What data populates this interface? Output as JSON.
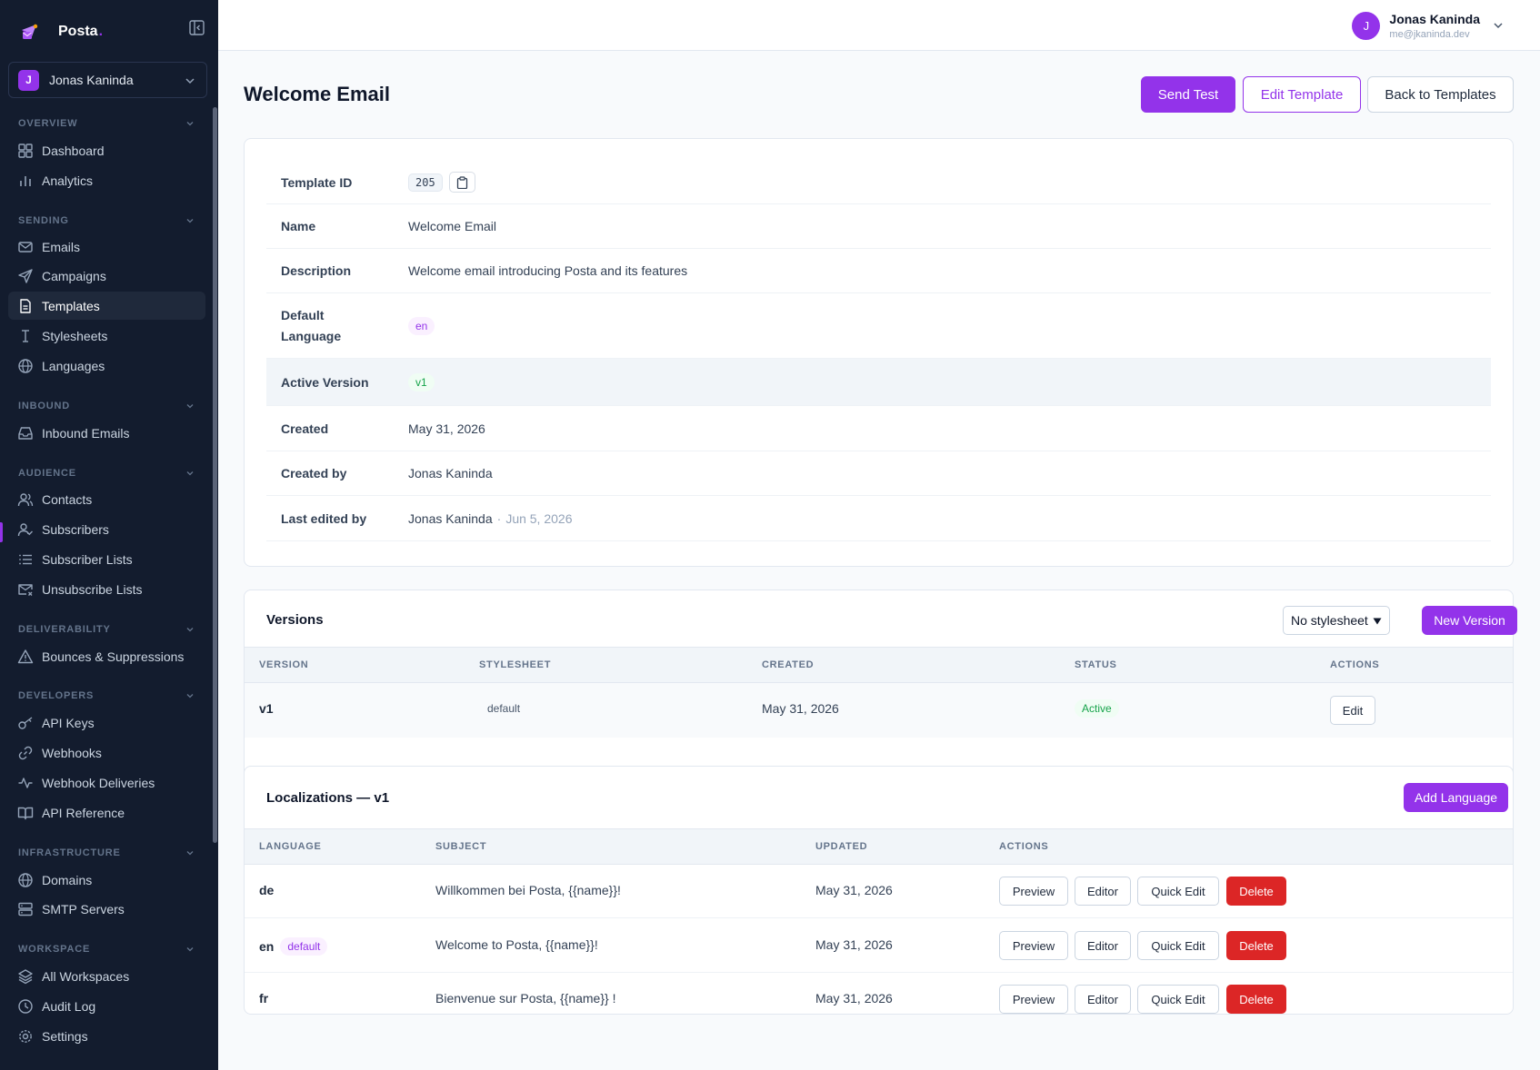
{
  "brand": {
    "name": "Posta",
    "dot": "."
  },
  "workspace": {
    "initial": "J",
    "name": "Jonas Kaninda"
  },
  "nav": {
    "sections": {
      "overview": "OVERVIEW",
      "sending": "SENDING",
      "inbound": "INBOUND",
      "audience": "AUDIENCE",
      "deliverability": "DELIVERABILITY",
      "developers": "DEVELOPERS",
      "infrastructure": "INFRASTRUCTURE",
      "workspace": "WORKSPACE"
    },
    "items": {
      "dashboard": "Dashboard",
      "analytics": "Analytics",
      "emails": "Emails",
      "campaigns": "Campaigns",
      "templates": "Templates",
      "stylesheets": "Stylesheets",
      "languages": "Languages",
      "inbound_emails": "Inbound Emails",
      "contacts": "Contacts",
      "subscribers": "Subscribers",
      "subscriber_lists": "Subscriber Lists",
      "unsubscribe_lists": "Unsubscribe Lists",
      "bounces": "Bounces & Suppressions",
      "api_keys": "API Keys",
      "webhooks": "Webhooks",
      "webhook_deliveries": "Webhook Deliveries",
      "api_reference": "API Reference",
      "domains": "Domains",
      "smtp_servers": "SMTP Servers",
      "all_workspaces": "All Workspaces",
      "audit_log": "Audit Log",
      "settings": "Settings"
    }
  },
  "user": {
    "initial": "J",
    "name": "Jonas Kaninda",
    "email": "me@jkaninda.dev"
  },
  "page": {
    "title": "Welcome Email",
    "send_test": "Send Test",
    "edit_template": "Edit Template",
    "back": "Back to Templates"
  },
  "details": {
    "template_id": {
      "label": "Template ID",
      "value": "205"
    },
    "name": {
      "label": "Name",
      "value": "Welcome Email"
    },
    "description": {
      "label": "Description",
      "value": "Welcome email introducing Posta and its features"
    },
    "default_language": {
      "label_1": "Default",
      "label_2": "Language",
      "value": "en"
    },
    "active_version": {
      "label": "Active Version",
      "value": "v1"
    },
    "created": {
      "label": "Created",
      "value": "May 31, 2026"
    },
    "created_by": {
      "label": "Created by",
      "value": "Jonas Kaninda"
    },
    "last_edited_by": {
      "label": "Last edited by",
      "value": "Jonas Kaninda",
      "sep": "·",
      "date": "Jun 5, 2026"
    }
  },
  "versions": {
    "title": "Versions",
    "stylesheet_select": "No stylesheet",
    "new_version": "New Version",
    "columns": [
      "VERSION",
      "STYLESHEET",
      "CREATED",
      "STATUS",
      "ACTIONS"
    ],
    "rows": [
      {
        "version": "v1",
        "stylesheet": "default",
        "created": "May 31, 2026",
        "status": "Active",
        "action": "Edit"
      }
    ]
  },
  "localizations": {
    "title": "Localizations — v1",
    "add_language": "Add Language",
    "columns": [
      "LANGUAGE",
      "SUBJECT",
      "UPDATED",
      "ACTIONS"
    ],
    "actions": {
      "preview": "Preview",
      "editor": "Editor",
      "quick_edit": "Quick Edit",
      "delete": "Delete"
    },
    "rows": [
      {
        "language": "de",
        "badge": "",
        "subject": "Willkommen bei Posta, {{name}}!",
        "updated": "May 31, 2026"
      },
      {
        "language": "en",
        "badge": "default",
        "subject": "Welcome to Posta, {{name}}!",
        "updated": "May 31, 2026"
      },
      {
        "language": "fr",
        "badge": "",
        "subject": "Bienvenue sur Posta, {{name}} !",
        "updated": "May 31, 2026"
      }
    ]
  },
  "colors": {
    "accent": "#9333ea",
    "sidebar": "#131c2e",
    "danger": "#dc2626",
    "success": "#16a34a"
  }
}
